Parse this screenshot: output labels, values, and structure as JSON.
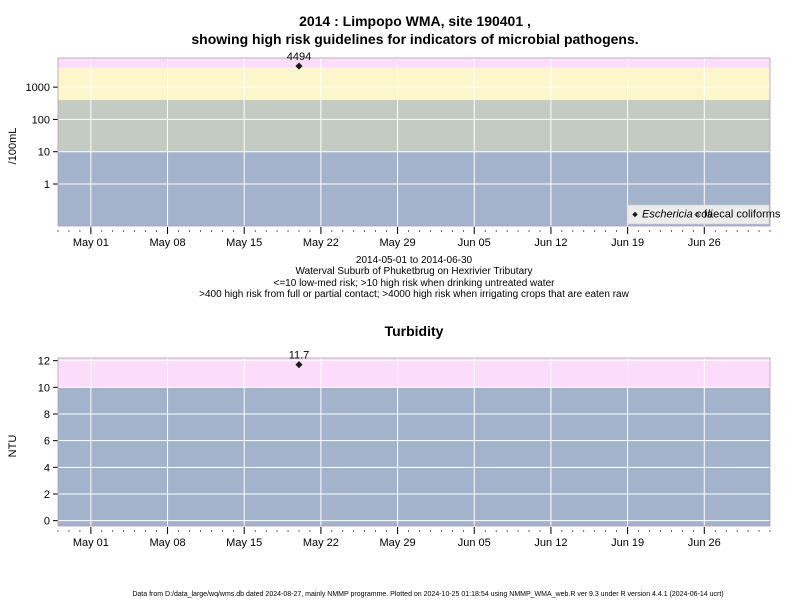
{
  "figure": {
    "title_line1": "2014 : Limpopo WMA, site 190401 ,",
    "title_line2": "showing high risk guidelines for indicators of microbial pathogens.",
    "date_range": "2014-05-01 to 2014-06-30",
    "site_name": "Waterval Suburb of Phuketbrug on Hexrivier Tributary",
    "note1": "<=10 low-med risk; >10 high risk when drinking untreated water",
    "note2": ">400 high risk from full or partial contact; >4000 high risk when irrigating crops that are eaten raw",
    "footer": "Data from D:/data_large/wq/wms.db dated 2024-08-27, mainly NMMP programme. Plotted on 2024-10-25 01:18:54 using NMMP_WMA_web.R ver 9.3 under R version 4.4.1 (2024-06-14 ucrt)"
  },
  "colors": {
    "band_low": "#a3b3cb",
    "band_mid": "#c3cbc3",
    "band_high": "#fbf6cb",
    "band_veryhigh": "#fbdcfa",
    "grid": "#ffffff",
    "point": "#1a1a1a"
  },
  "chart_data": [
    {
      "type": "scatter",
      "title": "",
      "ylabel": "/100mL",
      "y_scale": "log",
      "xlim": [
        "2014-04-28",
        "2014-07-02"
      ],
      "ylim": [
        0.05,
        8000
      ],
      "x_ticks": [
        "2014-05-01",
        "2014-05-08",
        "2014-05-15",
        "2014-05-22",
        "2014-05-29",
        "2014-06-05",
        "2014-06-12",
        "2014-06-19",
        "2014-06-26"
      ],
      "x_tick_labels": [
        "May 01",
        "May 08",
        "May 15",
        "May 22",
        "May 29",
        "Jun 05",
        "Jun 12",
        "Jun 19",
        "Jun 26"
      ],
      "y_ticks": [
        1,
        10,
        100,
        1000
      ],
      "y_tick_labels": [
        "1",
        "10",
        "100",
        "1000"
      ],
      "bands": [
        {
          "from": 0.05,
          "to": 10,
          "color": "#a3b3cb"
        },
        {
          "from": 10,
          "to": 400,
          "color": "#c3cbc3"
        },
        {
          "from": 400,
          "to": 4000,
          "color": "#fbf6cb"
        },
        {
          "from": 4000,
          "to": 8000,
          "color": "#fbdcfa"
        }
      ],
      "series": [
        {
          "name": "Eschericia coli",
          "marker": "filled-diamond",
          "points": [
            {
              "x": "2014-05-20",
              "y": 4494,
              "label": "4494"
            }
          ]
        },
        {
          "name": "faecal coliforms",
          "marker": "open-diamond",
          "points": []
        }
      ],
      "legend": "bottom-right",
      "grid": true
    },
    {
      "type": "scatter",
      "title": "Turbidity",
      "ylabel": "NTU",
      "y_scale": "linear",
      "xlim": [
        "2014-04-28",
        "2014-07-02"
      ],
      "ylim": [
        -0.4,
        12.2
      ],
      "x_ticks": [
        "2014-05-01",
        "2014-05-08",
        "2014-05-15",
        "2014-05-22",
        "2014-05-29",
        "2014-06-05",
        "2014-06-12",
        "2014-06-19",
        "2014-06-26"
      ],
      "x_tick_labels": [
        "May 01",
        "May 08",
        "May 15",
        "May 22",
        "May 29",
        "Jun 05",
        "Jun 12",
        "Jun 19",
        "Jun 26"
      ],
      "y_ticks": [
        0,
        2,
        4,
        6,
        8,
        10,
        12
      ],
      "y_tick_labels": [
        "0",
        "2",
        "4",
        "6",
        "8",
        "10",
        "12"
      ],
      "bands": [
        {
          "from": -0.4,
          "to": 10,
          "color": "#a3b3cb"
        },
        {
          "from": 10,
          "to": 12.2,
          "color": "#fbdcfa"
        }
      ],
      "series": [
        {
          "marker": "filled-diamond",
          "points": [
            {
              "x": "2014-05-20",
              "y": 11.7,
              "label": "11.7"
            }
          ]
        }
      ],
      "grid": true
    }
  ]
}
